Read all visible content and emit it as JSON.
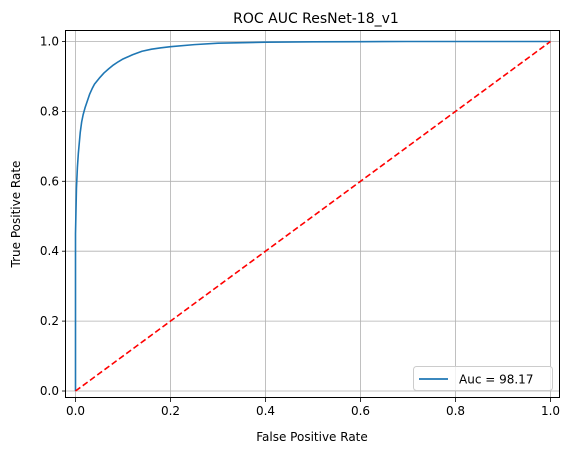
{
  "chart_data": {
    "type": "line",
    "title": "ROC AUC ResNet-18_v1",
    "xlabel": "False Positive Rate",
    "ylabel": "True Positive Rate",
    "xlim": [
      -0.02,
      1.02
    ],
    "ylim": [
      -0.02,
      1.03
    ],
    "xticks": [
      0.0,
      0.2,
      0.4,
      0.6,
      0.8,
      1.0
    ],
    "xtick_labels": [
      "0.0",
      "0.2",
      "0.4",
      "0.6",
      "0.8",
      "1.0"
    ],
    "yticks": [
      0.0,
      0.2,
      0.4,
      0.6,
      0.8,
      1.0
    ],
    "ytick_labels": [
      "0.0",
      "0.2",
      "0.4",
      "0.6",
      "0.8",
      "1.0"
    ],
    "grid": true,
    "legend_position": "lower-right",
    "series": [
      {
        "name": "Auc = 98.17",
        "color": "#1f77b4",
        "style": "solid",
        "x": [
          0.0,
          0.0,
          0.002,
          0.004,
          0.006,
          0.008,
          0.01,
          0.013,
          0.016,
          0.02,
          0.025,
          0.03,
          0.035,
          0.04,
          0.05,
          0.06,
          0.07,
          0.08,
          0.09,
          0.1,
          0.12,
          0.14,
          0.16,
          0.18,
          0.2,
          0.25,
          0.3,
          0.4,
          0.5,
          0.6,
          0.7,
          0.8,
          0.9,
          1.0
        ],
        "y": [
          0.0,
          0.45,
          0.58,
          0.64,
          0.68,
          0.71,
          0.74,
          0.77,
          0.79,
          0.81,
          0.83,
          0.85,
          0.865,
          0.878,
          0.895,
          0.91,
          0.922,
          0.933,
          0.942,
          0.95,
          0.962,
          0.972,
          0.978,
          0.982,
          0.985,
          0.991,
          0.995,
          0.998,
          0.999,
          0.9995,
          1.0,
          1.0,
          1.0,
          1.0
        ]
      },
      {
        "name": "",
        "color": "#ff0000",
        "style": "dashed",
        "x": [
          0.0,
          1.0
        ],
        "y": [
          0.0,
          1.0
        ]
      }
    ]
  }
}
